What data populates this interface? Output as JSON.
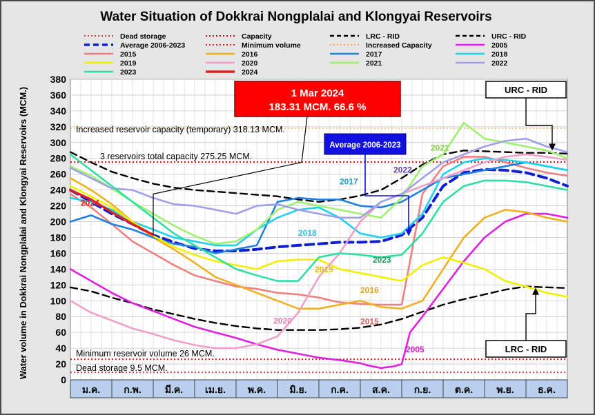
{
  "chart_data": {
    "type": "line",
    "title": "Water Situation of Dokkrai Nongplalai and Klongyai Reservoirs",
    "ylabel": "Water volume in Dokkrai Nongplalai and Klongyai Reservoirs (MCM.)",
    "xlabel": "",
    "ylim": [
      0,
      380
    ],
    "yticks": [
      0,
      20,
      40,
      60,
      80,
      100,
      120,
      140,
      160,
      180,
      200,
      220,
      240,
      260,
      280,
      300,
      320,
      340,
      360,
      380
    ],
    "categories": [
      "ม.ค.",
      "ก.พ.",
      "มี.ค.",
      "เม.ย.",
      "พ.ค.",
      "มิ.ย.",
      "ก.ค.",
      "ส.ค.",
      "ก.ย.",
      "ต.ค.",
      "พ.ย.",
      "ธ.ค."
    ],
    "grid": true,
    "legend_position": "top",
    "x_unit": "month (0 = start of ม.ค., 12 = end of ธ.ค.)",
    "reference_lines": [
      {
        "name": "Dead storage",
        "value": 9.5,
        "color": "#d04040",
        "label": "Dead storage 9.5 MCM."
      },
      {
        "name": "Minimum volume",
        "value": 26,
        "color": "#d02020",
        "label": "Minimum reservoir volume 26 MCM."
      },
      {
        "name": "Capacity",
        "value": 275.25,
        "color": "#e00000",
        "label": "3 reservoirs total capacity 275.25 MCM."
      },
      {
        "name": "Increased Capacity",
        "value": 318.13,
        "color": "#f0b060",
        "label": "Increased reservoir capacity (temporary)  318.13 MCM."
      }
    ],
    "series": [
      {
        "name": "LRC - RID",
        "color": "#000000",
        "style": "dash",
        "width": 2.4,
        "x": [
          0,
          0.5,
          1,
          1.5,
          2,
          2.5,
          3,
          3.5,
          4,
          4.5,
          5,
          5.5,
          6,
          6.5,
          7,
          7.5,
          8,
          8.5,
          9,
          9.5,
          10,
          10.5,
          11,
          11.5,
          12
        ],
        "y": [
          117,
          112,
          104,
          97,
          89,
          83,
          77,
          72,
          68,
          65,
          63,
          63,
          63,
          64,
          66,
          70,
          77,
          86,
          95,
          102,
          108,
          114,
          118,
          117,
          116
        ]
      },
      {
        "name": "URC - RID",
        "color": "#000000",
        "style": "dash",
        "width": 2.4,
        "x": [
          0,
          0.5,
          1,
          1.5,
          2,
          2.5,
          3,
          3.5,
          4,
          4.5,
          5,
          5.5,
          6,
          6.5,
          7,
          7.5,
          8,
          8.5,
          9,
          9.5,
          10,
          10.5,
          11,
          11.5,
          12
        ],
        "y": [
          288,
          275,
          263,
          255,
          248,
          243,
          240,
          238,
          236,
          234,
          232,
          228,
          225,
          228,
          233,
          240,
          255,
          272,
          285,
          290,
          289,
          288,
          287,
          287,
          286
        ]
      },
      {
        "name": "Average 2006-2023",
        "color": "#1020d0",
        "style": "dash",
        "width": 4,
        "x": [
          0,
          0.5,
          1,
          1.5,
          2,
          2.5,
          3,
          3.5,
          4,
          4.5,
          5,
          5.5,
          6,
          6.5,
          7,
          7.5,
          8,
          8.5,
          9,
          9.5,
          10,
          10.5,
          11,
          11.5,
          12
        ],
        "y": [
          240,
          225,
          210,
          197,
          183,
          174,
          166,
          163,
          163,
          165,
          168,
          170,
          172,
          174,
          174,
          175,
          183,
          205,
          245,
          262,
          266,
          265,
          262,
          255,
          245
        ]
      },
      {
        "name": "2005",
        "color": "#e020e0",
        "style": "solid",
        "width": 2.6,
        "x": [
          0,
          0.5,
          1,
          1.5,
          2,
          2.5,
          3,
          3.5,
          4,
          4.5,
          5,
          5.5,
          6,
          6.5,
          7,
          7.2,
          7.5,
          7.8,
          8,
          8.2,
          8.5,
          9,
          9.5,
          10,
          10.5,
          11,
          11.5,
          12
        ],
        "y": [
          140,
          125,
          110,
          97,
          87,
          77,
          67,
          60,
          53,
          45,
          38,
          33,
          28,
          25,
          21,
          18,
          15,
          17,
          20,
          60,
          80,
          115,
          150,
          180,
          200,
          210,
          210,
          205
        ]
      },
      {
        "name": "2015",
        "color": "#f08080",
        "style": "solid",
        "width": 2.6,
        "x": [
          0,
          0.5,
          1,
          1.5,
          2,
          2.5,
          3,
          3.5,
          4,
          4.5,
          5,
          5.5,
          6,
          6.5,
          7,
          7.5,
          8,
          8.2,
          8.5,
          9,
          9.5,
          10,
          10.5,
          11,
          11.5,
          12
        ],
        "y": [
          235,
          218,
          197,
          175,
          160,
          145,
          132,
          125,
          118,
          115,
          110,
          108,
          104,
          98,
          96,
          95,
          95,
          150,
          235,
          270,
          282,
          282,
          275,
          268,
          262,
          258
        ]
      },
      {
        "name": "2016",
        "color": "#f0b020",
        "style": "solid",
        "width": 2.6,
        "x": [
          0,
          0.5,
          1,
          1.5,
          2,
          2.5,
          3,
          3.5,
          4,
          4.5,
          5,
          5.5,
          6,
          6.5,
          7,
          7.5,
          8,
          8.5,
          9,
          9.5,
          10,
          10.5,
          11,
          11.5,
          12
        ],
        "y": [
          255,
          240,
          222,
          200,
          180,
          165,
          148,
          130,
          120,
          110,
          100,
          90,
          90,
          95,
          100,
          92,
          90,
          100,
          140,
          180,
          205,
          215,
          212,
          205,
          200
        ]
      },
      {
        "name": "2017",
        "color": "#2080e0",
        "style": "solid",
        "width": 2.6,
        "x": [
          0,
          0.5,
          1,
          1.5,
          2,
          2.5,
          3,
          3.5,
          4,
          4.5,
          5,
          5.5,
          6,
          6.5,
          7,
          7.5,
          8,
          8.5,
          9,
          9.5,
          10,
          10.5,
          11,
          11.5,
          12
        ],
        "y": [
          200,
          208,
          197,
          190,
          180,
          172,
          168,
          160,
          165,
          170,
          225,
          230,
          228,
          228,
          220,
          218,
          225,
          240,
          255,
          260,
          265,
          270,
          275,
          270,
          265
        ]
      },
      {
        "name": "2018",
        "color": "#20d0f0",
        "style": "solid",
        "width": 2.6,
        "x": [
          0,
          0.5,
          1,
          1.5,
          2,
          2.5,
          3,
          3.5,
          4,
          4.5,
          5,
          5.5,
          6,
          6.5,
          7,
          7.5,
          8,
          8.5,
          9,
          9.5,
          10,
          10.5,
          11,
          11.5,
          12
        ],
        "y": [
          230,
          225,
          215,
          200,
          190,
          180,
          175,
          170,
          170,
          190,
          205,
          215,
          218,
          205,
          185,
          180,
          185,
          210,
          260,
          275,
          280,
          278,
          275,
          270,
          265
        ]
      },
      {
        "name": "2019",
        "color": "#f0f000",
        "style": "solid",
        "width": 2.6,
        "x": [
          0,
          0.5,
          1,
          1.5,
          2,
          2.5,
          3,
          3.5,
          4,
          4.5,
          5,
          5.5,
          6,
          6.5,
          7,
          7.5,
          8,
          8.5,
          9,
          9.5,
          10,
          10.5,
          11,
          11.5,
          12
        ],
        "y": [
          245,
          232,
          218,
          200,
          182,
          168,
          158,
          150,
          145,
          140,
          150,
          152,
          152,
          140,
          135,
          130,
          125,
          145,
          155,
          148,
          140,
          125,
          118,
          110,
          105
        ]
      },
      {
        "name": "2020",
        "color": "#f0a0c8",
        "style": "solid",
        "width": 2.6,
        "x": [
          0,
          0.5,
          1,
          1.5,
          2,
          2.5,
          3,
          3.5,
          4,
          4.5,
          5,
          5.5,
          6,
          6.5,
          7,
          7.5,
          8,
          8.5,
          9,
          9.5,
          10,
          10.5,
          11,
          11.5,
          12
        ],
        "y": [
          100,
          85,
          75,
          65,
          58,
          50,
          44,
          40,
          40,
          45,
          55,
          85,
          130,
          160,
          200,
          225,
          235,
          245,
          255,
          265,
          275,
          282,
          285,
          282,
          278
        ]
      },
      {
        "name": "2021",
        "color": "#a0f070",
        "style": "solid",
        "width": 2.6,
        "x": [
          0,
          0.5,
          1,
          1.5,
          2,
          2.5,
          3,
          3.5,
          4,
          4.5,
          5,
          5.5,
          6,
          6.5,
          7,
          7.5,
          8,
          8.5,
          9,
          9.5,
          10,
          10.5,
          11,
          11.5,
          12
        ],
        "y": [
          270,
          258,
          242,
          225,
          210,
          195,
          182,
          172,
          175,
          190,
          215,
          225,
          220,
          215,
          210,
          205,
          230,
          270,
          285,
          325,
          305,
          300,
          295,
          290,
          280
        ]
      },
      {
        "name": "2022",
        "color": "#a0a0e8",
        "style": "solid",
        "width": 2.6,
        "x": [
          0,
          0.5,
          1,
          1.5,
          2,
          2.5,
          3,
          3.5,
          4,
          4.5,
          5,
          5.5,
          6,
          6.5,
          7,
          7.5,
          8,
          8.5,
          9,
          9.5,
          10,
          10.5,
          11,
          11.5,
          12
        ],
        "y": [
          268,
          255,
          242,
          240,
          230,
          222,
          220,
          215,
          210,
          220,
          222,
          215,
          210,
          205,
          205,
          225,
          235,
          255,
          275,
          285,
          295,
          302,
          305,
          295,
          288
        ]
      },
      {
        "name": "2023",
        "color": "#30e0a0",
        "style": "solid",
        "width": 2.6,
        "x": [
          0,
          0.5,
          1,
          1.5,
          2,
          2.5,
          3,
          3.5,
          4,
          4.5,
          5,
          5.5,
          6,
          6.5,
          7,
          7.5,
          8,
          8.5,
          9,
          9.5,
          10,
          10.5,
          11,
          11.5,
          12
        ],
        "y": [
          285,
          265,
          245,
          225,
          205,
          185,
          170,
          155,
          140,
          132,
          125,
          125,
          155,
          160,
          158,
          155,
          158,
          185,
          225,
          245,
          252,
          252,
          250,
          245,
          240
        ]
      },
      {
        "name": "2024",
        "color": "#e02020",
        "style": "solid",
        "width": 3.4,
        "x": [
          0,
          0.5,
          1,
          1.5,
          2
        ],
        "y": [
          240,
          228,
          212,
          197,
          183.31
        ]
      }
    ],
    "annotations": [
      {
        "text": "1 Mar 2024",
        "text2": "183.31 MCM. 66.6 %",
        "kind": "red-box"
      },
      {
        "text": "Average 2006-2023",
        "kind": "blue-box"
      },
      {
        "text": "URC - RID",
        "kind": "white-box"
      },
      {
        "text": "LRC - RID",
        "kind": "white-box"
      }
    ],
    "series_labels": [
      {
        "text": "2024",
        "color": "#e02020",
        "x": 0.25,
        "y": 220
      },
      {
        "text": "2017",
        "color": "#20a0d0",
        "x": 6.5,
        "y": 247
      },
      {
        "text": "2022",
        "color": "#6040b0",
        "x": 7.8,
        "y": 262
      },
      {
        "text": "2021",
        "color": "#80d040",
        "x": 8.7,
        "y": 290
      },
      {
        "text": "2018",
        "color": "#30c0e0",
        "x": 5.5,
        "y": 182
      },
      {
        "text": "2019",
        "color": "#e0c000",
        "x": 5.9,
        "y": 136
      },
      {
        "text": "2023",
        "color": "#20a060",
        "x": 7.3,
        "y": 148
      },
      {
        "text": "2016",
        "color": "#e0a020",
        "x": 7.0,
        "y": 110
      },
      {
        "text": "2015",
        "color": "#e06060",
        "x": 7.0,
        "y": 70
      },
      {
        "text": "2020",
        "color": "#e080b0",
        "x": 4.9,
        "y": 71
      },
      {
        "text": "2005",
        "color": "#d020d0",
        "x": 8.1,
        "y": 35
      }
    ]
  }
}
